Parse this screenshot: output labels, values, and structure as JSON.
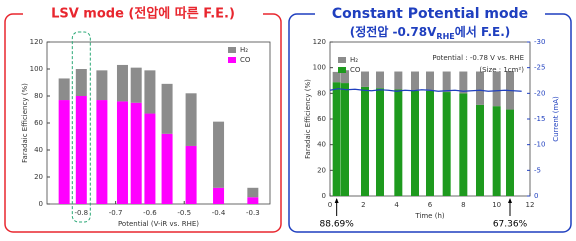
{
  "chart_data": [
    {
      "type": "bar",
      "stacked": true,
      "title": "LSV mode (전압에 따른 F.E.)",
      "title_color": "#e8262e",
      "x": [
        -0.85,
        -0.8,
        -0.74,
        -0.68,
        -0.64,
        -0.6,
        -0.55,
        -0.48,
        -0.4,
        -0.3
      ],
      "series": [
        {
          "name": "H₂",
          "color": "#8c8c8c",
          "values": [
            16,
            20,
            22,
            27,
            26,
            32,
            37,
            39,
            49,
            7
          ]
        },
        {
          "name": "CO",
          "color": "#ff00ff",
          "values": [
            77,
            80,
            77,
            76,
            75,
            67,
            52,
            43,
            12,
            5
          ]
        }
      ],
      "highlight_x": -0.8,
      "xlim": [
        -0.9,
        -0.25
      ],
      "xticks": [
        -0.8,
        -0.7,
        -0.6,
        -0.5,
        -0.4,
        -0.3
      ],
      "ylim": [
        0,
        120
      ],
      "yticks": [
        0,
        20,
        40,
        60,
        80,
        100,
        120
      ],
      "xlabel": "Potential (V-iR vs. RHE)",
      "ylabel": "Faradaic Efficiency (%)",
      "legend": "upper right"
    },
    {
      "type": "bar",
      "stacked": true,
      "title": "Constant Potential mode",
      "subtitle": [
        "(정전압 -0.78V",
        "RHE",
        "에서 F.E.)"
      ],
      "title_color": "#1f3fbf",
      "x": [
        0.4,
        0.9,
        2.1,
        3.0,
        4.1,
        5.1,
        6.0,
        7.0,
        8.0,
        9.0,
        10.0,
        10.8
      ],
      "series": [
        {
          "name": "H₂",
          "color": "#8c8c8c",
          "values": [
            8,
            10,
            12,
            13,
            14,
            15,
            15,
            16,
            17,
            26,
            27,
            30
          ]
        },
        {
          "name": "CO",
          "color": "#1e9a1e",
          "values": [
            88.69,
            88,
            85,
            84,
            83,
            82,
            82,
            81,
            80,
            71,
            70,
            67.36
          ],
          "value_labels": [
            "88.69%",
            null,
            null,
            null,
            null,
            null,
            null,
            null,
            null,
            null,
            null,
            "67.36%"
          ]
        },
        {
          "axis": "y2",
          "color": "#1f3fbf",
          "x": [
            0,
            0.5,
            1,
            1.5,
            2,
            2.5,
            3,
            3.5,
            4,
            4.5,
            5,
            5.5,
            6,
            6.5,
            7,
            7.5,
            8,
            8.5,
            9,
            9.5,
            10,
            10.5,
            11,
            11.5
          ],
          "values": [
            -20.6,
            -20.9,
            -20.7,
            -20.8,
            -20.6,
            -20.5,
            -20.7,
            -20.6,
            -20.4,
            -20.6,
            -20.5,
            -20.7,
            -20.6,
            -20.4,
            -20.5,
            -20.6,
            -20.4,
            -20.5,
            -20.6,
            -20.4,
            -20.5,
            -20.6,
            -20.5,
            -20.4
          ]
        }
      ],
      "annotations": [
        "Potential : -0.78 V vs. RHE",
        "(Size : 1cm²)"
      ],
      "xlim": [
        0,
        12
      ],
      "xticks": [
        0,
        2,
        4,
        6,
        8,
        10,
        12
      ],
      "ylim": [
        0,
        120
      ],
      "yticks": [
        0,
        20,
        40,
        60,
        80,
        100,
        120
      ],
      "y2lim": [
        0,
        -30
      ],
      "y2ticks": [
        0,
        -5,
        -10,
        -15,
        -20,
        -25,
        -30
      ],
      "xlabel": "Time (h)",
      "ylabel": "Faradaic Efficiency (%)",
      "y2label": "Current (mA)",
      "legend": "upper left"
    }
  ]
}
